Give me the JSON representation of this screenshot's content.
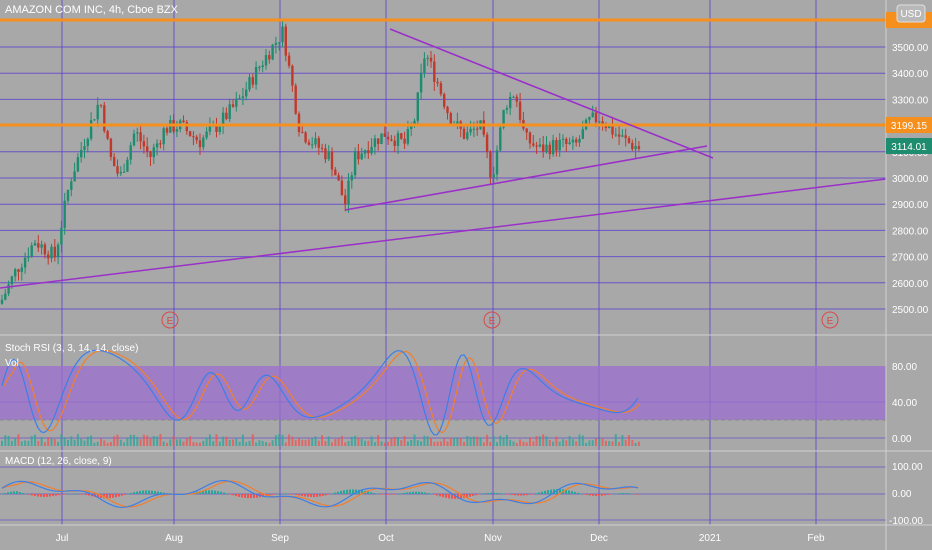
{
  "header": {
    "symbol_line": "AMAZON COM INC, 4h, Cboe BZX",
    "currency_button": "USD"
  },
  "colors": {
    "background": "#a8a8a8",
    "grid": "#5b3fd0",
    "up_candle": "#1e8c6e",
    "down_candle": "#c0392b",
    "trendline": "#9b30c9",
    "horizontal_level": "#f5901e",
    "last_price_tag": "#1e8c6e",
    "rsi_k": "#3d7fe6",
    "rsi_d": "#f07f2e",
    "rsi_band": "#9b6fd0",
    "macd_line": "#3d7fe6",
    "signal_line": "#f07f2e",
    "hist_up": "#26a69a",
    "hist_down": "#ef5350"
  },
  "price_panel": {
    "y_ticks": [
      2500,
      2600,
      2700,
      2800,
      2900,
      3000,
      3100,
      3200,
      3300,
      3400,
      3500
    ],
    "y_tick_labels": [
      "2500.00",
      "2600.00",
      "2700.00",
      "2800.00",
      "2900.00",
      "3000.00",
      "3100.00",
      "3200.00",
      "3300.00",
      "3400.00",
      "3500.00"
    ],
    "ylim": [
      2440,
      3640
    ],
    "horizontal_levels": [
      3199.15,
      3582
    ],
    "level_labels": [
      "3199.15"
    ],
    "last_price": "3114.01",
    "earnings_markers": [
      "E",
      "E",
      "E"
    ]
  },
  "time_axis": {
    "labels": [
      "Jul",
      "Aug",
      "Sep",
      "Oct",
      "Nov",
      "Dec",
      "2021",
      "Feb"
    ]
  },
  "stoch_rsi": {
    "title": "Stoch RSI (3, 3, 14, 14, close)",
    "volume_label": "Vol",
    "y_ticks": [
      "80.00",
      "40.00",
      "0.00"
    ],
    "overbought": 80,
    "oversold": 20
  },
  "macd": {
    "title": "MACD (12, 26, close, 9)",
    "y_ticks": [
      "100.00",
      "0.00",
      "-100.00"
    ]
  },
  "chart_data": {
    "type": "candlestick",
    "title": "AMAZON COM INC, 4h, Cboe BZX",
    "ylim": [
      2440,
      3640
    ],
    "key_points": [
      {
        "date": "2020-06-15",
        "close": 2510
      },
      {
        "date": "2020-07-10",
        "close": 3200
      },
      {
        "date": "2020-07-20",
        "close": 3000
      },
      {
        "date": "2020-08-10",
        "close": 3150
      },
      {
        "date": "2020-09-02",
        "close": 3550
      },
      {
        "date": "2020-09-08",
        "close": 3150
      },
      {
        "date": "2020-09-21",
        "close": 2900
      },
      {
        "date": "2020-10-13",
        "close": 3480
      },
      {
        "date": "2020-10-30",
        "close": 3000
      },
      {
        "date": "2020-11-09",
        "close": 3300
      },
      {
        "date": "2020-12-01",
        "close": 3230
      },
      {
        "date": "2020-12-11",
        "close": 3114.01
      }
    ],
    "horizontal_levels": [
      3199.15,
      3582
    ],
    "last_price": 3114.01
  }
}
